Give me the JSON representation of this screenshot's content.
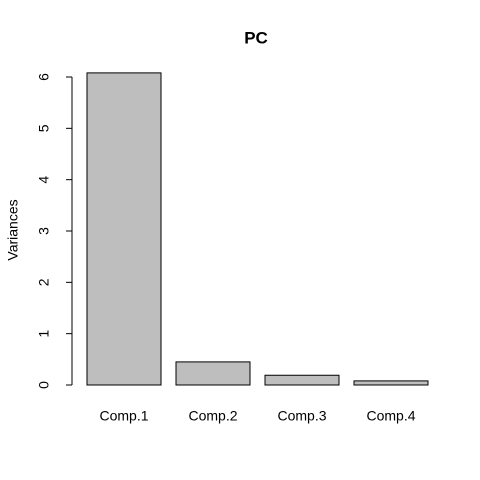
{
  "chart_data": {
    "type": "bar",
    "title": "PC",
    "y_label": "Variances",
    "categories": [
      "Comp.1",
      "Comp.2",
      "Comp.3",
      "Comp.4"
    ],
    "values": [
      6.08,
      0.45,
      0.19,
      0.08
    ],
    "color": "#bebebe",
    "ylim": [
      0,
      6
    ],
    "yticks": [
      0,
      1,
      2,
      3,
      4,
      5,
      6
    ],
    "grid": false
  }
}
